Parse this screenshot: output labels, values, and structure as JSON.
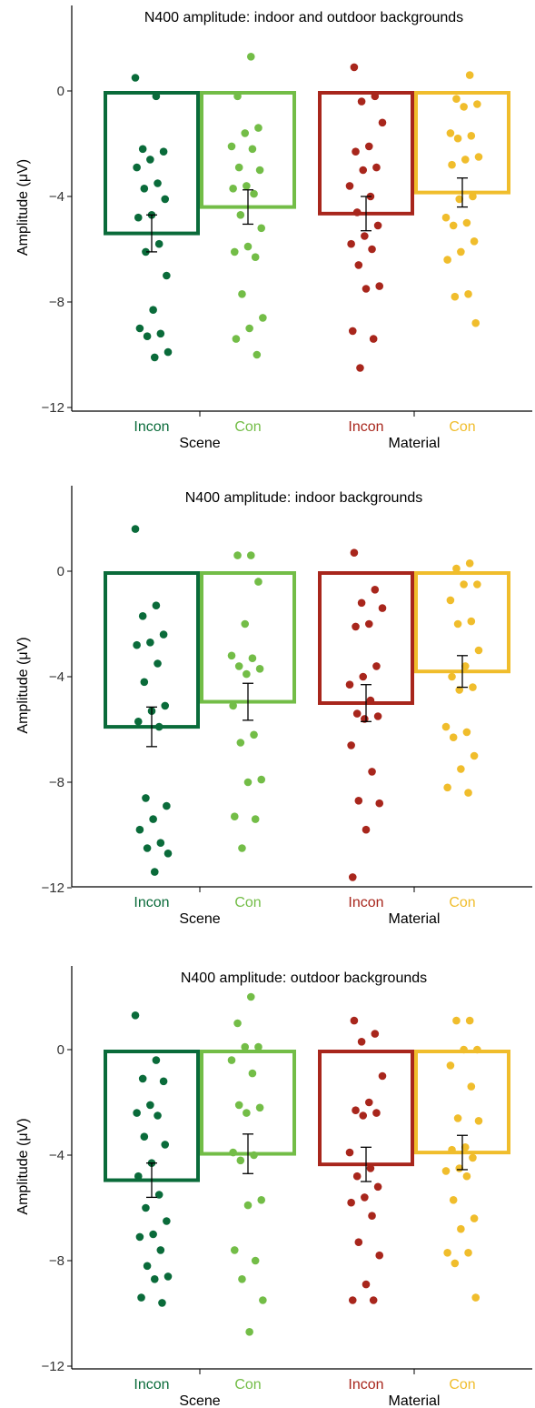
{
  "chart_data": [
    {
      "type": "bar",
      "title": "N400 amplitude: indoor and outdoor backgrounds",
      "ylabel": "Amplitude (μV)",
      "ylim": [
        -12,
        2.5
      ],
      "yticks": [
        0,
        -4,
        -8,
        -12
      ],
      "ytick_labels": [
        "0",
        "−4",
        "−8",
        "−12"
      ],
      "groups": [
        "Scene",
        "Material"
      ],
      "categories": [
        "Incon",
        "Con",
        "Incon",
        "Con"
      ],
      "colors": [
        "#0a6b3a",
        "#73bd47",
        "#a8261c",
        "#f0bd2c"
      ],
      "values": [
        -5.4,
        -4.4,
        -4.65,
        -3.85
      ],
      "errors": [
        0.7,
        0.65,
        0.65,
        0.55
      ],
      "points": [
        [
          0.5,
          -0.2,
          -2.2,
          -2.3,
          -2.6,
          -2.9,
          -3.5,
          -3.7,
          -4.1,
          -4.7,
          -4.8,
          -5.8,
          -6.1,
          -7.0,
          -8.3,
          -9.0,
          -9.2,
          -9.3,
          -9.9,
          -10.1
        ],
        [
          1.3,
          -0.2,
          -1.4,
          -1.6,
          -2.1,
          -2.2,
          -2.9,
          -3.0,
          -3.6,
          -3.7,
          -3.9,
          -4.7,
          -5.2,
          -5.9,
          -6.1,
          -6.3,
          -7.7,
          -8.6,
          -9.0,
          -9.4,
          -10.0
        ],
        [
          0.9,
          -0.2,
          -0.4,
          -1.2,
          -2.1,
          -2.3,
          -2.9,
          -3.0,
          -3.6,
          -4.0,
          -4.6,
          -5.1,
          -5.5,
          -5.8,
          -6.0,
          -6.6,
          -7.4,
          -7.5,
          -9.1,
          -9.4,
          -10.5
        ],
        [
          0.6,
          -0.3,
          -0.5,
          -0.6,
          -1.6,
          -1.7,
          -1.8,
          -2.5,
          -2.6,
          -2.8,
          -4.0,
          -4.1,
          -4.8,
          -5.0,
          -5.1,
          -5.7,
          -6.1,
          -6.4,
          -7.7,
          -7.8,
          -8.8
        ]
      ]
    },
    {
      "type": "bar",
      "title": "N400 amplitude: indoor backgrounds",
      "ylabel": "Amplitude (μV)",
      "ylim": [
        -12,
        2.5
      ],
      "yticks": [
        0,
        -4,
        -8,
        -12
      ],
      "ytick_labels": [
        "0",
        "−4",
        "−8",
        "−12"
      ],
      "groups": [
        "Scene",
        "Material"
      ],
      "categories": [
        "Incon",
        "Con",
        "Incon",
        "Con"
      ],
      "colors": [
        "#0a6b3a",
        "#73bd47",
        "#a8261c",
        "#f0bd2c"
      ],
      "values": [
        -5.9,
        -4.95,
        -5.0,
        -3.8
      ],
      "errors": [
        0.75,
        0.7,
        0.7,
        0.6
      ],
      "points": [
        [
          1.6,
          -1.3,
          -1.7,
          -2.4,
          -2.7,
          -2.8,
          -3.5,
          -4.2,
          -5.1,
          -5.3,
          -5.7,
          -5.9,
          -8.6,
          -8.9,
          -9.4,
          -9.8,
          -10.3,
          -10.5,
          -10.7,
          -11.4
        ],
        [
          0.6,
          0.6,
          -0.4,
          -2.0,
          -3.2,
          -3.3,
          -3.6,
          -3.7,
          -3.9,
          -5.1,
          -6.2,
          -6.5,
          -7.9,
          -8.0,
          -9.3,
          -9.4,
          -10.5
        ],
        [
          0.7,
          -0.7,
          -1.2,
          -1.4,
          -2.0,
          -2.1,
          -3.6,
          -4.0,
          -4.3,
          -4.9,
          -5.4,
          -5.5,
          -5.6,
          -6.6,
          -7.6,
          -8.7,
          -8.8,
          -9.8,
          -11.6
        ],
        [
          0.3,
          0.1,
          -0.5,
          -0.5,
          -1.1,
          -1.9,
          -2.0,
          -3.0,
          -3.6,
          -4.0,
          -4.4,
          -4.5,
          -5.9,
          -6.1,
          -6.3,
          -7.0,
          -7.5,
          -8.2,
          -8.4
        ]
      ]
    },
    {
      "type": "bar",
      "title": "N400 amplitude: outdoor backgrounds",
      "ylabel": "Amplitude (μV)",
      "ylim": [
        -12,
        2.5
      ],
      "yticks": [
        0,
        -4,
        -8,
        -12
      ],
      "ytick_labels": [
        "0",
        "−4",
        "−8",
        "−12"
      ],
      "groups": [
        "Scene",
        "Material"
      ],
      "categories": [
        "Incon",
        "Con",
        "Incon",
        "Con"
      ],
      "colors": [
        "#0a6b3a",
        "#73bd47",
        "#a8261c",
        "#f0bd2c"
      ],
      "values": [
        -4.95,
        -3.95,
        -4.35,
        -3.9
      ],
      "errors": [
        0.65,
        0.75,
        0.65,
        0.65
      ],
      "points": [
        [
          1.3,
          -0.4,
          -1.1,
          -1.2,
          -2.1,
          -2.4,
          -2.5,
          -3.3,
          -3.6,
          -4.3,
          -4.8,
          -5.5,
          -6.0,
          -6.5,
          -7.0,
          -7.1,
          -7.6,
          -8.2,
          -8.6,
          -8.7,
          -9.4,
          -9.6
        ],
        [
          2.0,
          1.0,
          0.1,
          0.1,
          -0.4,
          -0.9,
          -2.1,
          -2.2,
          -2.4,
          -3.9,
          -4.0,
          -4.2,
          -5.7,
          -5.9,
          -7.6,
          -8.0,
          -8.7,
          -9.5,
          -10.7
        ],
        [
          1.1,
          0.6,
          0.3,
          -1.0,
          -2.0,
          -2.3,
          -2.4,
          -2.5,
          -3.9,
          -4.5,
          -4.8,
          -5.2,
          -5.6,
          -5.8,
          -6.3,
          -7.3,
          -7.8,
          -8.9,
          -9.5,
          -9.5
        ],
        [
          1.1,
          1.1,
          0.0,
          0.0,
          -0.6,
          -1.4,
          -2.6,
          -2.7,
          -3.7,
          -3.8,
          -4.1,
          -4.5,
          -4.6,
          -4.8,
          -5.7,
          -6.4,
          -6.8,
          -7.7,
          -7.7,
          -8.1,
          -9.4
        ]
      ]
    }
  ]
}
